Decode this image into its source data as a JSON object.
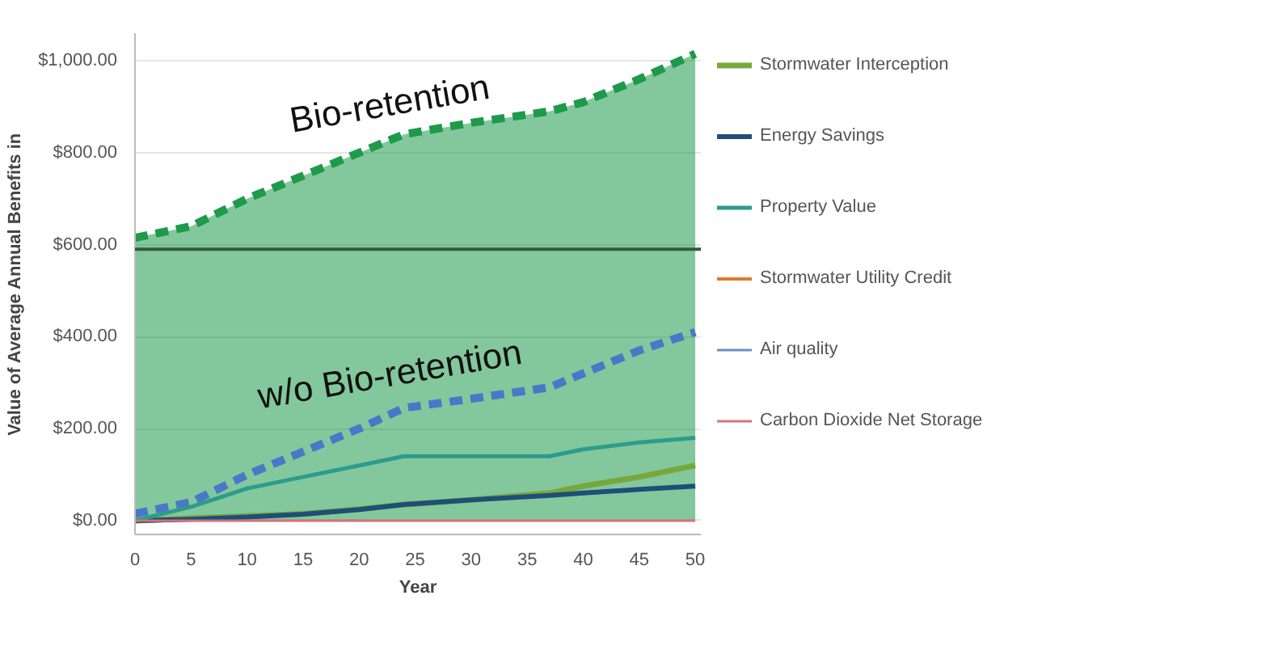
{
  "chart_data": {
    "type": "line",
    "xlabel": "Year",
    "ylabel": "Value of Average Annual Benefits in",
    "x": [
      0,
      5,
      10,
      15,
      20,
      24,
      30,
      37,
      40,
      45,
      50
    ],
    "xlim": [
      0,
      50.5
    ],
    "xticks": [
      0,
      5,
      10,
      15,
      20,
      25,
      30,
      35,
      40,
      45,
      50
    ],
    "ylim": [
      -30,
      1060
    ],
    "yticks": [
      {
        "value": 0,
        "label": "$0.00"
      },
      {
        "value": 200,
        "label": "$200.00"
      },
      {
        "value": 400,
        "label": "$400.00"
      },
      {
        "value": 600,
        "label": "$600.00"
      },
      {
        "value": 800,
        "label": "$800.00"
      },
      {
        "value": 1000,
        "label": "$1,000.00"
      }
    ],
    "grid": "y",
    "legend": "right",
    "series": [
      {
        "type": "area",
        "color": "#1e9a4a",
        "line_style": "dashed",
        "values": [
          615,
          640,
          700,
          750,
          800,
          840,
          865,
          890,
          910,
          960,
          1015
        ]
      },
      {
        "type": "line",
        "color": "#4a78c8",
        "line_style": "dashed",
        "values": [
          15,
          40,
          100,
          150,
          200,
          245,
          265,
          290,
          320,
          370,
          410
        ]
      },
      {
        "name": "Stormwater Interception",
        "color": "#77a83c",
        "values": [
          0,
          5,
          10,
          15,
          25,
          35,
          45,
          60,
          75,
          95,
          120
        ]
      },
      {
        "name": "Energy Savings",
        "color": "#1f4e79",
        "values": [
          0,
          3,
          8,
          14,
          24,
          35,
          45,
          55,
          60,
          68,
          75
        ]
      },
      {
        "name": "Property Value",
        "color": "#2e9c8c",
        "values": [
          0,
          30,
          70,
          95,
          120,
          140,
          140,
          140,
          155,
          170,
          180
        ]
      },
      {
        "name": "Stormwater Utility Credit",
        "color": "#e07b2a",
        "values": [
          null,
          null,
          null,
          null,
          null,
          null,
          null,
          null,
          null,
          null,
          null
        ]
      },
      {
        "name": "Air quality",
        "color": "#6f8fbf",
        "values": [
          null,
          null,
          null,
          null,
          null,
          null,
          null,
          null,
          null,
          null,
          null
        ]
      },
      {
        "name": "Carbon Dioxide Net Storage",
        "color": "#d9707a",
        "values": [
          0,
          0,
          0,
          0,
          0,
          0,
          0,
          0,
          0,
          0,
          0
        ]
      }
    ],
    "ref_lines": [
      {
        "axis": "y",
        "value": 590,
        "color": "#2f5d3a"
      }
    ],
    "annotations": [
      "Bio-retention",
      "w/o Bio-retention"
    ]
  }
}
